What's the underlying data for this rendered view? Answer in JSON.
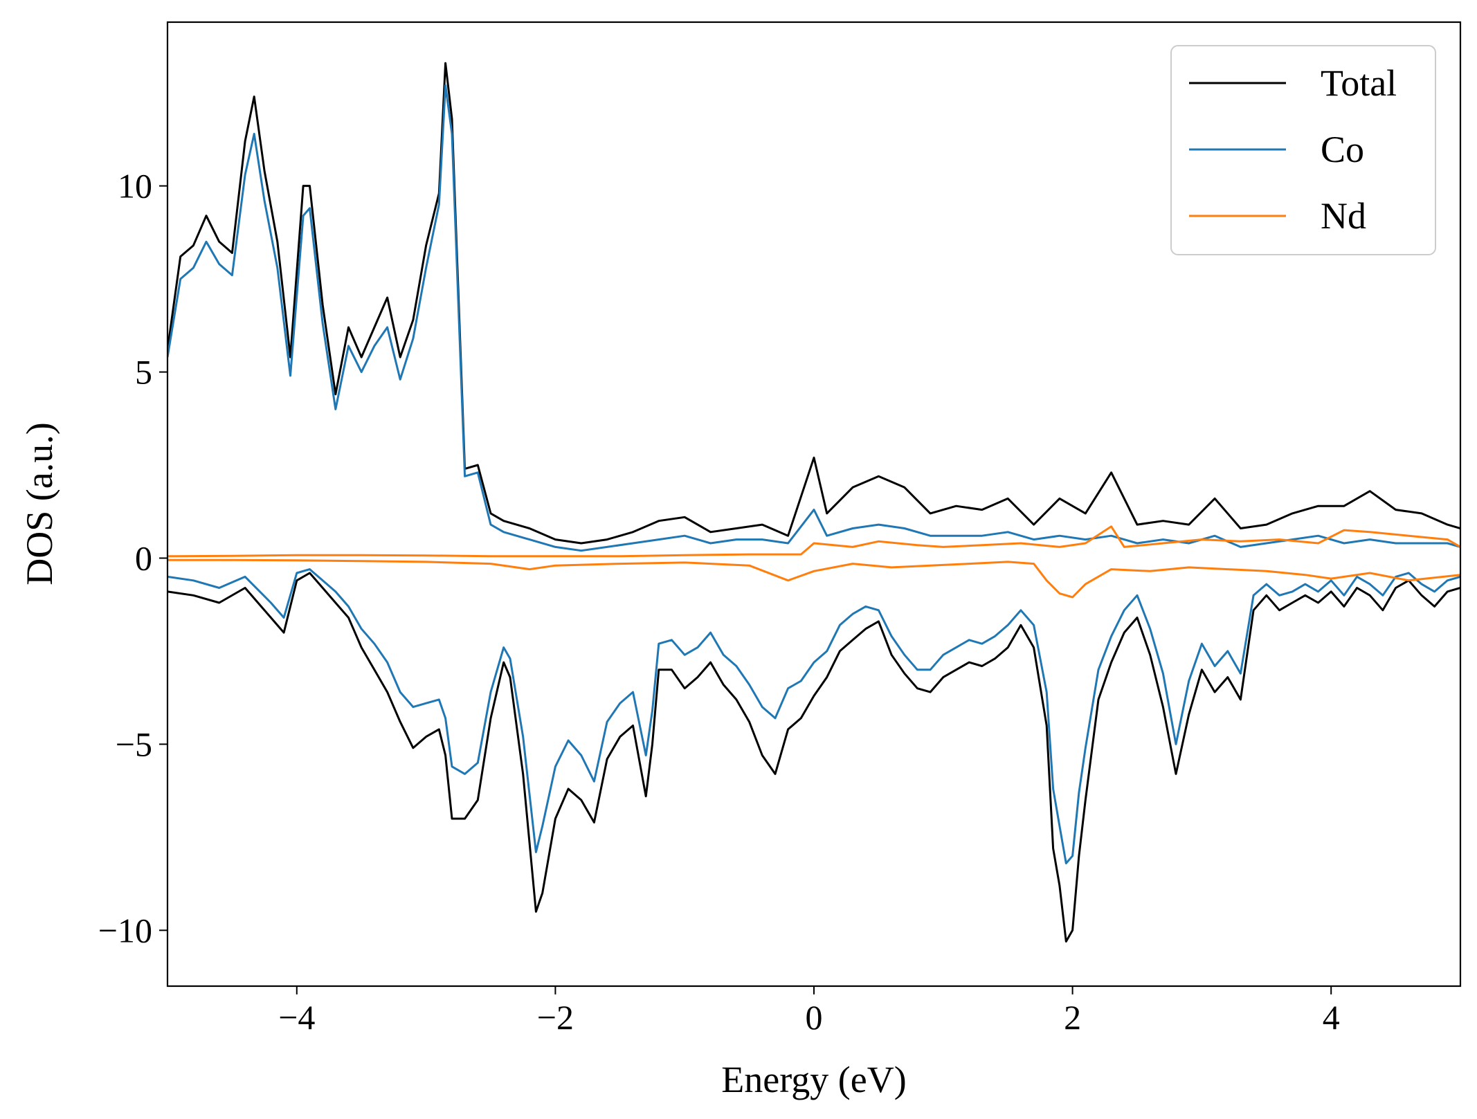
{
  "chart_data": {
    "type": "line",
    "xlabel": "Energy (eV)",
    "ylabel": "DOS (a.u.)",
    "xlim": [
      -5,
      5
    ],
    "ylim": [
      -11.5,
      14.4
    ],
    "xticks": [
      -4,
      -2,
      0,
      2,
      4
    ],
    "xtick_labels": [
      "−4",
      "−2",
      "0",
      "2",
      "4"
    ],
    "yticks": [
      -10,
      -5,
      0,
      5,
      10
    ],
    "ytick_labels": [
      "−10",
      "−5",
      "0",
      "5",
      "10"
    ],
    "grid": false,
    "legend_position": "top-right",
    "series": [
      {
        "name": "Total",
        "color": "#000000",
        "x_up": [
          -5.0,
          -4.9,
          -4.8,
          -4.7,
          -4.6,
          -4.5,
          -4.4,
          -4.33,
          -4.25,
          -4.15,
          -4.05,
          -3.95,
          -3.9,
          -3.8,
          -3.7,
          -3.6,
          -3.5,
          -3.4,
          -3.3,
          -3.2,
          -3.1,
          -3.0,
          -2.9,
          -2.85,
          -2.8,
          -2.7,
          -2.6,
          -2.5,
          -2.4,
          -2.2,
          -2.0,
          -1.8,
          -1.6,
          -1.4,
          -1.2,
          -1.0,
          -0.8,
          -0.6,
          -0.4,
          -0.2,
          0.0,
          0.1,
          0.3,
          0.5,
          0.7,
          0.9,
          1.1,
          1.3,
          1.5,
          1.7,
          1.9,
          2.1,
          2.3,
          2.5,
          2.7,
          2.9,
          3.1,
          3.3,
          3.5,
          3.7,
          3.9,
          4.1,
          4.3,
          4.5,
          4.7,
          4.9,
          5.0
        ],
        "y_up": [
          5.6,
          8.1,
          8.4,
          9.2,
          8.5,
          8.2,
          11.2,
          12.4,
          10.4,
          8.5,
          5.4,
          10.0,
          10.0,
          6.8,
          4.4,
          6.2,
          5.4,
          6.2,
          7.0,
          5.4,
          6.4,
          8.4,
          9.8,
          13.3,
          11.8,
          2.4,
          2.5,
          1.2,
          1.0,
          0.8,
          0.5,
          0.4,
          0.5,
          0.7,
          1.0,
          1.1,
          0.7,
          0.8,
          0.9,
          0.6,
          2.7,
          1.2,
          1.9,
          2.2,
          1.9,
          1.2,
          1.4,
          1.3,
          1.6,
          0.9,
          1.6,
          1.2,
          2.3,
          0.9,
          1.0,
          0.9,
          1.6,
          0.8,
          0.9,
          1.2,
          1.4,
          1.4,
          1.8,
          1.3,
          1.2,
          0.9,
          0.8
        ],
        "x_dn": [
          -5.0,
          -4.8,
          -4.6,
          -4.4,
          -4.2,
          -4.1,
          -4.0,
          -3.9,
          -3.8,
          -3.7,
          -3.6,
          -3.5,
          -3.4,
          -3.3,
          -3.2,
          -3.1,
          -3.0,
          -2.9,
          -2.85,
          -2.8,
          -2.7,
          -2.6,
          -2.5,
          -2.4,
          -2.35,
          -2.25,
          -2.15,
          -2.1,
          -2.0,
          -1.9,
          -1.8,
          -1.7,
          -1.6,
          -1.5,
          -1.4,
          -1.3,
          -1.25,
          -1.2,
          -1.1,
          -1.0,
          -0.9,
          -0.8,
          -0.7,
          -0.6,
          -0.5,
          -0.4,
          -0.3,
          -0.2,
          -0.1,
          0.0,
          0.1,
          0.2,
          0.3,
          0.4,
          0.5,
          0.6,
          0.7,
          0.8,
          0.9,
          1.0,
          1.1,
          1.2,
          1.3,
          1.4,
          1.5,
          1.6,
          1.7,
          1.8,
          1.85,
          1.9,
          1.95,
          2.0,
          2.05,
          2.1,
          2.2,
          2.3,
          2.4,
          2.5,
          2.6,
          2.7,
          2.8,
          2.9,
          3.0,
          3.1,
          3.2,
          3.3,
          3.4,
          3.5,
          3.6,
          3.7,
          3.8,
          3.9,
          4.0,
          4.1,
          4.2,
          4.3,
          4.4,
          4.5,
          4.6,
          4.7,
          4.8,
          4.9,
          5.0
        ],
        "y_dn": [
          -0.9,
          -1.0,
          -1.2,
          -0.8,
          -1.6,
          -2.0,
          -0.6,
          -0.4,
          -0.8,
          -1.2,
          -1.6,
          -2.4,
          -3.0,
          -3.6,
          -4.4,
          -5.1,
          -4.8,
          -4.6,
          -5.3,
          -7.0,
          -7.0,
          -6.5,
          -4.3,
          -2.8,
          -3.2,
          -5.8,
          -9.5,
          -9.0,
          -7.0,
          -6.2,
          -6.5,
          -7.1,
          -5.4,
          -4.8,
          -4.5,
          -6.4,
          -5.0,
          -3.0,
          -3.0,
          -3.5,
          -3.2,
          -2.8,
          -3.4,
          -3.8,
          -4.4,
          -5.3,
          -5.8,
          -4.6,
          -4.3,
          -3.7,
          -3.2,
          -2.5,
          -2.2,
          -1.9,
          -1.7,
          -2.6,
          -3.1,
          -3.5,
          -3.6,
          -3.2,
          -3.0,
          -2.8,
          -2.9,
          -2.7,
          -2.4,
          -1.8,
          -2.4,
          -4.5,
          -7.8,
          -8.8,
          -10.3,
          -10.0,
          -8.0,
          -6.5,
          -3.8,
          -2.8,
          -2.0,
          -1.6,
          -2.6,
          -4.0,
          -5.8,
          -4.2,
          -3.0,
          -3.6,
          -3.2,
          -3.8,
          -1.4,
          -1.0,
          -1.4,
          -1.2,
          -1.0,
          -1.2,
          -0.9,
          -1.3,
          -0.8,
          -1.0,
          -1.4,
          -0.8,
          -0.6,
          -1.0,
          -1.3,
          -0.9,
          -0.8
        ]
      },
      {
        "name": "Co",
        "color": "#1f77b4",
        "x_up": [
          -5.0,
          -4.9,
          -4.8,
          -4.7,
          -4.6,
          -4.5,
          -4.4,
          -4.33,
          -4.25,
          -4.15,
          -4.05,
          -3.95,
          -3.9,
          -3.8,
          -3.7,
          -3.6,
          -3.5,
          -3.4,
          -3.3,
          -3.2,
          -3.1,
          -3.0,
          -2.9,
          -2.85,
          -2.8,
          -2.7,
          -2.6,
          -2.5,
          -2.4,
          -2.2,
          -2.0,
          -1.8,
          -1.6,
          -1.4,
          -1.2,
          -1.0,
          -0.8,
          -0.6,
          -0.4,
          -0.2,
          0.0,
          0.1,
          0.3,
          0.5,
          0.7,
          0.9,
          1.1,
          1.3,
          1.5,
          1.7,
          1.9,
          2.1,
          2.3,
          2.5,
          2.7,
          2.9,
          3.1,
          3.3,
          3.5,
          3.7,
          3.9,
          4.1,
          4.3,
          4.5,
          4.7,
          4.9,
          5.0
        ],
        "y_up": [
          5.4,
          7.5,
          7.8,
          8.5,
          7.9,
          7.6,
          10.3,
          11.4,
          9.6,
          7.8,
          4.9,
          9.2,
          9.4,
          6.3,
          4.0,
          5.7,
          5.0,
          5.7,
          6.2,
          4.8,
          5.9,
          7.8,
          9.5,
          12.7,
          11.4,
          2.2,
          2.3,
          0.9,
          0.7,
          0.5,
          0.3,
          0.2,
          0.3,
          0.4,
          0.5,
          0.6,
          0.4,
          0.5,
          0.5,
          0.4,
          1.3,
          0.6,
          0.8,
          0.9,
          0.8,
          0.6,
          0.6,
          0.6,
          0.7,
          0.5,
          0.6,
          0.5,
          0.6,
          0.4,
          0.5,
          0.4,
          0.6,
          0.3,
          0.4,
          0.5,
          0.6,
          0.4,
          0.5,
          0.4,
          0.4,
          0.4,
          0.3
        ],
        "x_dn": [
          -5.0,
          -4.8,
          -4.6,
          -4.4,
          -4.2,
          -4.1,
          -4.0,
          -3.9,
          -3.8,
          -3.7,
          -3.6,
          -3.5,
          -3.4,
          -3.3,
          -3.2,
          -3.1,
          -3.0,
          -2.9,
          -2.85,
          -2.8,
          -2.7,
          -2.6,
          -2.5,
          -2.4,
          -2.35,
          -2.25,
          -2.15,
          -2.1,
          -2.0,
          -1.9,
          -1.8,
          -1.7,
          -1.6,
          -1.5,
          -1.4,
          -1.3,
          -1.25,
          -1.2,
          -1.1,
          -1.0,
          -0.9,
          -0.8,
          -0.7,
          -0.6,
          -0.5,
          -0.4,
          -0.3,
          -0.2,
          -0.1,
          0.0,
          0.1,
          0.2,
          0.3,
          0.4,
          0.5,
          0.6,
          0.7,
          0.8,
          0.9,
          1.0,
          1.1,
          1.2,
          1.3,
          1.4,
          1.5,
          1.6,
          1.7,
          1.8,
          1.85,
          1.9,
          1.95,
          2.0,
          2.05,
          2.1,
          2.2,
          2.3,
          2.4,
          2.5,
          2.6,
          2.7,
          2.8,
          2.9,
          3.0,
          3.1,
          3.2,
          3.3,
          3.4,
          3.5,
          3.6,
          3.7,
          3.8,
          3.9,
          4.0,
          4.1,
          4.2,
          4.3,
          4.4,
          4.5,
          4.6,
          4.7,
          4.8,
          4.9,
          5.0
        ],
        "y_dn": [
          -0.5,
          -0.6,
          -0.8,
          -0.5,
          -1.2,
          -1.6,
          -0.4,
          -0.3,
          -0.6,
          -0.9,
          -1.3,
          -1.9,
          -2.3,
          -2.8,
          -3.6,
          -4.0,
          -3.9,
          -3.8,
          -4.3,
          -5.6,
          -5.8,
          -5.5,
          -3.6,
          -2.4,
          -2.7,
          -4.8,
          -7.9,
          -7.2,
          -5.6,
          -4.9,
          -5.3,
          -6.0,
          -4.4,
          -3.9,
          -3.6,
          -5.3,
          -4.1,
          -2.3,
          -2.2,
          -2.6,
          -2.4,
          -2.0,
          -2.6,
          -2.9,
          -3.4,
          -4.0,
          -4.3,
          -3.5,
          -3.3,
          -2.8,
          -2.5,
          -1.8,
          -1.5,
          -1.3,
          -1.4,
          -2.1,
          -2.6,
          -3.0,
          -3.0,
          -2.6,
          -2.4,
          -2.2,
          -2.3,
          -2.1,
          -1.8,
          -1.4,
          -1.8,
          -3.6,
          -6.2,
          -7.2,
          -8.2,
          -8.0,
          -6.3,
          -5.1,
          -3.0,
          -2.1,
          -1.4,
          -1.0,
          -1.9,
          -3.1,
          -5.0,
          -3.3,
          -2.3,
          -2.9,
          -2.5,
          -3.1,
          -1.0,
          -0.7,
          -1.0,
          -0.9,
          -0.7,
          -0.9,
          -0.6,
          -1.0,
          -0.5,
          -0.7,
          -1.0,
          -0.5,
          -0.4,
          -0.7,
          -0.9,
          -0.6,
          -0.5
        ]
      },
      {
        "name": "Nd",
        "color": "#ff7f0e",
        "x_up": [
          -5.0,
          -4.5,
          -4.0,
          -3.5,
          -3.0,
          -2.5,
          -2.0,
          -1.5,
          -1.0,
          -0.5,
          -0.1,
          0.0,
          0.3,
          0.5,
          0.8,
          1.0,
          1.3,
          1.6,
          1.9,
          2.1,
          2.3,
          2.4,
          2.7,
          3.0,
          3.3,
          3.6,
          3.9,
          4.1,
          4.3,
          4.6,
          4.9,
          5.0
        ],
        "y_up": [
          0.05,
          0.06,
          0.08,
          0.08,
          0.07,
          0.05,
          0.05,
          0.05,
          0.08,
          0.1,
          0.1,
          0.4,
          0.3,
          0.45,
          0.35,
          0.3,
          0.35,
          0.4,
          0.3,
          0.4,
          0.85,
          0.3,
          0.4,
          0.5,
          0.45,
          0.5,
          0.4,
          0.75,
          0.7,
          0.6,
          0.5,
          0.3
        ],
        "x_dn": [
          -5.0,
          -4.5,
          -4.0,
          -3.5,
          -3.0,
          -2.5,
          -2.2,
          -2.0,
          -1.5,
          -1.0,
          -0.5,
          -0.2,
          0.0,
          0.3,
          0.6,
          0.9,
          1.2,
          1.5,
          1.7,
          1.8,
          1.9,
          2.0,
          2.1,
          2.3,
          2.6,
          2.9,
          3.2,
          3.5,
          3.8,
          4.0,
          4.3,
          4.6,
          5.0
        ],
        "y_dn": [
          -0.05,
          -0.05,
          -0.06,
          -0.08,
          -0.1,
          -0.15,
          -0.3,
          -0.2,
          -0.15,
          -0.12,
          -0.2,
          -0.6,
          -0.35,
          -0.15,
          -0.25,
          -0.2,
          -0.15,
          -0.1,
          -0.15,
          -0.6,
          -0.95,
          -1.05,
          -0.7,
          -0.3,
          -0.35,
          -0.25,
          -0.3,
          -0.35,
          -0.45,
          -0.55,
          -0.4,
          -0.6,
          -0.45
        ]
      }
    ]
  }
}
